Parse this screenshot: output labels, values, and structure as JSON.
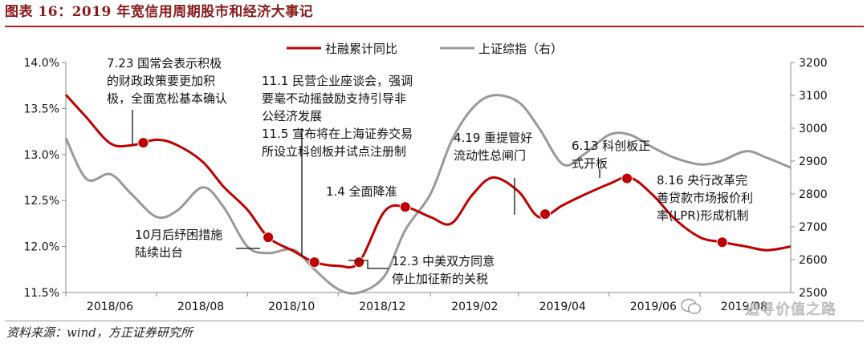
{
  "header": {
    "title": "图表 16：2019 年宽信用周期股市和经济大事记"
  },
  "footer": {
    "source": "资料来源：wind，方正证券研究所"
  },
  "watermark": {
    "text": "追寻价值之路"
  },
  "chart_data": {
    "type": "line",
    "title": "",
    "x_ticks": [
      "2018/06",
      "2018/08",
      "2018/10",
      "2018/12",
      "2019/02",
      "2019/04",
      "2019/06",
      "2019/08"
    ],
    "ylim_left": [
      11.5,
      14.0
    ],
    "ylim_right": [
      2500,
      3200
    ],
    "yticks_left": [
      "11.5%",
      "12.0%",
      "12.5%",
      "13.0%",
      "13.5%",
      "14.0%"
    ],
    "yticks_right": [
      "2500",
      "2600",
      "2700",
      "2800",
      "2900",
      "3000",
      "3100",
      "3200"
    ],
    "grid": false,
    "legend_position": "top",
    "colors": {
      "social_financing": "#c00000",
      "shanghai_index": "#999999"
    },
    "series": [
      {
        "name": "社融累计同比",
        "axis": "left",
        "x": [
          "2018-06-01",
          "2018-06-15",
          "2018-07-01",
          "2018-07-15",
          "2018-08-01",
          "2018-08-15",
          "2018-09-01",
          "2018-09-15",
          "2018-10-01",
          "2018-10-15",
          "2018-11-01",
          "2018-11-15",
          "2018-12-01",
          "2018-12-15",
          "2019-01-01",
          "2019-01-15",
          "2019-02-01",
          "2019-02-15",
          "2019-03-01",
          "2019-03-15",
          "2019-04-01",
          "2019-04-15",
          "2019-05-01",
          "2019-05-15",
          "2019-06-01",
          "2019-06-15",
          "2019-07-01",
          "2019-07-15",
          "2019-08-01",
          "2019-08-15",
          "2019-09-01",
          "2019-09-15",
          "2019-10-01"
        ],
        "values": [
          13.65,
          13.4,
          13.12,
          13.1,
          13.16,
          13.1,
          12.92,
          12.65,
          12.4,
          12.1,
          11.95,
          11.83,
          11.79,
          11.83,
          12.38,
          12.43,
          12.32,
          12.25,
          12.56,
          12.75,
          12.6,
          12.32,
          12.45,
          12.56,
          12.68,
          12.75,
          12.55,
          12.3,
          12.1,
          12.05,
          12.0,
          11.96,
          12.0
        ]
      },
      {
        "name": "上证综指（右）",
        "axis": "right",
        "x": [
          "2018-06-01",
          "2018-06-15",
          "2018-07-01",
          "2018-07-15",
          "2018-08-01",
          "2018-08-15",
          "2018-09-01",
          "2018-09-15",
          "2018-10-01",
          "2018-10-15",
          "2018-11-01",
          "2018-11-15",
          "2018-12-01",
          "2018-12-15",
          "2019-01-01",
          "2019-01-15",
          "2019-02-01",
          "2019-02-15",
          "2019-03-01",
          "2019-03-15",
          "2019-04-01",
          "2019-04-15",
          "2019-05-01",
          "2019-05-15",
          "2019-06-01",
          "2019-06-15",
          "2019-07-01",
          "2019-07-15",
          "2019-08-01",
          "2019-08-15",
          "2019-09-01",
          "2019-09-15",
          "2019-10-01"
        ],
        "values": [
          2970,
          2845,
          2860,
          2800,
          2730,
          2750,
          2820,
          2760,
          2640,
          2620,
          2630,
          2570,
          2510,
          2500,
          2550,
          2690,
          2800,
          2960,
          3060,
          3100,
          3080,
          3000,
          2890,
          2920,
          2980,
          2980,
          2940,
          2910,
          2890,
          2900,
          2930,
          2910,
          2880
        ]
      }
    ],
    "annotations": [
      {
        "text": "7.23 国常会表示积极\n的财政政策要更加积\n极，全面宽松基本确认",
        "date": "2018-07-23"
      },
      {
        "text": "11.1 民营企业座谈会，强调\n要毫不动摇鼓励支持引导非\n公经济发展",
        "date": "2018-11-01"
      },
      {
        "text": "11.5 宣布将在上海证券交易\n所设立科创板并试点注册制",
        "date": "2018-11-05"
      },
      {
        "text": "1.4 全面降准",
        "date": "2019-01-04"
      },
      {
        "text": "4.19 重提管好\n流动性总闸门",
        "date": "2019-04-19"
      },
      {
        "text": "6.13 科创板正\n式开板",
        "date": "2019-06-13"
      },
      {
        "text": "8.16 央行改革完\n善贷款市场报价利\n率(LPR)形成机制",
        "date": "2019-08-16"
      },
      {
        "text": "10月后纾困措施\n陆续出台",
        "date": "2018-10-15"
      },
      {
        "text": "12.3 中美双方同意\n停止加征新的关税",
        "date": "2018-12-03"
      }
    ]
  }
}
